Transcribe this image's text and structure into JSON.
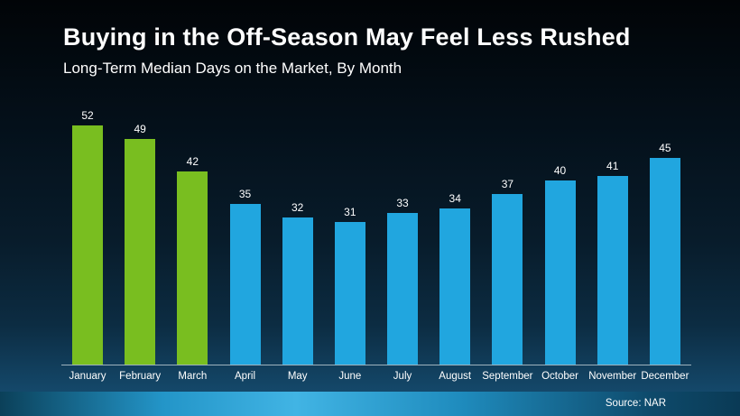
{
  "chart_data": {
    "type": "bar",
    "title": "Buying in the Off-Season May Feel Less Rushed",
    "subtitle": "Long-Term Median Days on the Market, By Month",
    "categories": [
      "January",
      "February",
      "March",
      "April",
      "May",
      "June",
      "July",
      "August",
      "September",
      "October",
      "November",
      "December"
    ],
    "values": [
      52,
      49,
      42,
      35,
      32,
      31,
      33,
      34,
      37,
      40,
      41,
      45
    ],
    "bar_colors": [
      "#79be20",
      "#79be20",
      "#79be20",
      "#21a6df",
      "#21a6df",
      "#21a6df",
      "#21a6df",
      "#21a6df",
      "#21a6df",
      "#21a6df",
      "#21a6df",
      "#21a6df"
    ],
    "accent_colors": {
      "offseason_green": "#79be20",
      "in_season_blue": "#21a6df"
    },
    "xlabel": "",
    "ylabel": "",
    "ylim": [
      0,
      52
    ],
    "grid": false,
    "value_labels": true,
    "legend": "none"
  },
  "footer": {
    "source_text": "Source: NAR"
  }
}
